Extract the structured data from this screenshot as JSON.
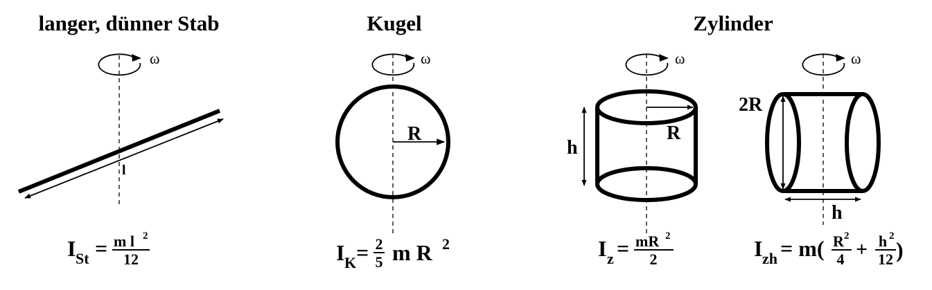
{
  "titles": {
    "rod": "langer, dünner Stab",
    "sphere": "Kugel",
    "cylinder": "Zylinder"
  },
  "rotation_symbol": "ω",
  "labels": {
    "rod_length": "l",
    "sphere_radius": "R",
    "cyl_height": "h",
    "cyl_radius": "R",
    "cyl2_diameter": "2R",
    "cyl2_length": "h"
  },
  "formulas": {
    "rod": {
      "I": "I",
      "sub": "St",
      "eq": "=",
      "num": "m l",
      "num_exp": "2",
      "den": "12"
    },
    "sphere": {
      "I": "I",
      "sub": "K",
      "eq": "=",
      "num": "2",
      "den": "5",
      "rest": "m R",
      "rest_exp": "2"
    },
    "cyl_vertical": {
      "I": "I",
      "sub": "z",
      "eq": "=",
      "num": "mR",
      "num_exp": "2",
      "den": "2"
    },
    "cyl_horizontal": {
      "I": "I",
      "sub": "zh",
      "eq": "= m(",
      "f1_num": "R",
      "f1_exp": "2",
      "f1_den": "4",
      "plus": "+",
      "f2_num": "h",
      "f2_exp": "2",
      "f2_den": "12",
      "close": ")"
    }
  }
}
